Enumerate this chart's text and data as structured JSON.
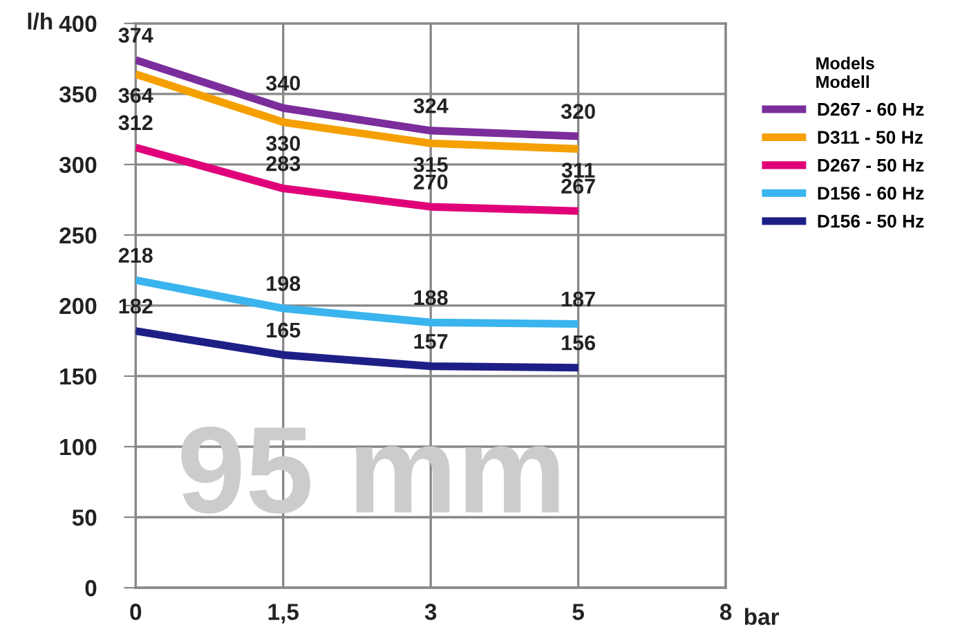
{
  "chart_data": {
    "type": "line",
    "categories": [
      "0",
      "1,5",
      "3",
      "5",
      "8"
    ],
    "xlabel": "bar",
    "ylabel": "l/h",
    "legend_title": "Models\nModell",
    "series": [
      {
        "name": "D267 - 60 Hz",
        "color": "#7b2d9b",
        "values": [
          374,
          340,
          324,
          320,
          null
        ]
      },
      {
        "name": "D311 - 50 Hz",
        "color": "#f5a000",
        "values": [
          364,
          330,
          315,
          311,
          null
        ]
      },
      {
        "name": "D267 - 50 Hz",
        "color": "#e0007a",
        "values": [
          312,
          283,
          270,
          267,
          null
        ]
      },
      {
        "name": "D156 - 60 Hz",
        "color": "#3ab4ee",
        "values": [
          218,
          198,
          188,
          187,
          null
        ]
      },
      {
        "name": "D156 - 50 Hz",
        "color": "#1e1f86",
        "values": [
          182,
          165,
          157,
          156,
          null
        ]
      }
    ],
    "ylim": [
      0,
      400
    ],
    "yticks": [
      0,
      50,
      100,
      150,
      200,
      250,
      300,
      350,
      400
    ],
    "grid": true,
    "legend": "right",
    "data_labels": true,
    "marker": "none",
    "line_style": "solid",
    "annotations": [
      "95 mm"
    ]
  }
}
